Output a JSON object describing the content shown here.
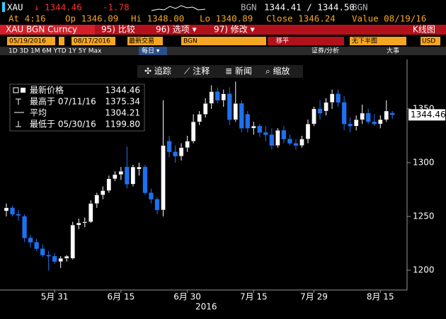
{
  "header": {
    "ticker": "XAU",
    "last": "↓ 1344.46",
    "change": "-1.78",
    "source1": "BGN",
    "bid_ask": "1344.41 / 1344.50",
    "source2": "BGN",
    "time": "At 4:16",
    "open": "Op 1346.09",
    "high": "Hi 1348.00",
    "low": "Lo 1340.89",
    "close": "Close 1346.24",
    "value_date": "Value 08/19/16",
    "security": "XAU BGN Curncy",
    "menu_compare": "95) 比较",
    "menu_options": "96) 选项 ▾",
    "menu_edit": "97) 修改 ▾",
    "view": "K线图",
    "start_date": "05/19/2016",
    "end_date": "08/17/2016",
    "field": "最新交易",
    "field_source": "BGN",
    "shift": "移平",
    "lower_pane": "无下半图",
    "currency": "USD",
    "periods": "1D  3D  1M  6M  YTD  1Y  5Y  Max",
    "frequency": "每日 ▾",
    "analysis": "证券/分析",
    "events": "大事",
    "tool_track": "✣ 追踪",
    "tool_annotate": "⟋ 注释",
    "tool_news": "≣ 新闻",
    "tool_zoom": "⌕ 缩放"
  },
  "chart_data": {
    "type": "candlestick",
    "categories": [
      null,
      null,
      null,
      null,
      null,
      null,
      null,
      null,
      "5月 31",
      null,
      null,
      null,
      null,
      null,
      null,
      null,
      null,
      null,
      null,
      "6月 15",
      null,
      null,
      null,
      null,
      null,
      null,
      null,
      null,
      null,
      null,
      "6月 30",
      null,
      null,
      null,
      null,
      null,
      null,
      null,
      null,
      null,
      null,
      "7月 15",
      null,
      null,
      null,
      null,
      null,
      null,
      null,
      null,
      null,
      "7月 29",
      null,
      null,
      null,
      null,
      null,
      null,
      null,
      null,
      null,
      null,
      "8月 15",
      null,
      null
    ],
    "x_year": "2016",
    "open": [
      1255,
      1258,
      1252,
      1250,
      1230,
      1226,
      1220,
      1214,
      1213,
      1208,
      1211,
      1211,
      1242,
      1244,
      1245,
      1262,
      1270,
      1274,
      1285,
      1289,
      1296,
      1280,
      1294,
      1296,
      1272,
      1266,
      1256,
      1320,
      1310,
      1306,
      1314,
      1320,
      1338,
      1345,
      1355,
      1366,
      1358,
      1364,
      1340,
      1355,
      1345,
      1332,
      1334,
      1328,
      1326,
      1316,
      1330,
      1322,
      1318,
      1316,
      1322,
      1336,
      1350,
      1348,
      1356,
      1364,
      1356,
      1336,
      1334,
      1340,
      1346,
      1338,
      1336,
      1340,
      1346.09
    ],
    "high": [
      1262,
      1260,
      1256,
      1252,
      1233,
      1229,
      1224,
      1218,
      1216,
      1213,
      1214,
      1245,
      1248,
      1249,
      1265,
      1272,
      1278,
      1288,
      1292,
      1296,
      1315,
      1298,
      1300,
      1298,
      1276,
      1268,
      1358,
      1325,
      1316,
      1318,
      1325,
      1345,
      1348,
      1360,
      1372,
      1370,
      1368,
      1370,
      1375.34,
      1358,
      1348,
      1338,
      1336,
      1334,
      1332,
      1332,
      1334,
      1326,
      1322,
      1325,
      1340,
      1352,
      1358,
      1360,
      1368,
      1368,
      1362,
      1342,
      1344,
      1354,
      1350,
      1345,
      1344,
      1358,
      1348.0
    ],
    "low": [
      1250,
      1250,
      1246,
      1226,
      1221,
      1218,
      1212,
      1199.8,
      1206,
      1202,
      1208,
      1210,
      1238,
      1240,
      1244,
      1258,
      1266,
      1272,
      1283,
      1284,
      1276,
      1278,
      1288,
      1270,
      1262,
      1252,
      1250,
      1305,
      1300,
      1302,
      1310,
      1318,
      1335,
      1342,
      1350,
      1355,
      1352,
      1335,
      1338,
      1328,
      1328,
      1326,
      1324,
      1320,
      1312,
      1314,
      1318,
      1316,
      1312,
      1314,
      1318,
      1334,
      1340,
      1344,
      1350,
      1352,
      1330,
      1328,
      1330,
      1336,
      1336,
      1334,
      1332,
      1338,
      1340.89
    ],
    "close": [
      1258,
      1252,
      1251,
      1230,
      1226,
      1220,
      1214,
      1213,
      1208,
      1211,
      1213,
      1242,
      1244,
      1245,
      1262,
      1270,
      1274,
      1285,
      1289,
      1292,
      1280,
      1296,
      1296,
      1272,
      1266,
      1256,
      1316,
      1310,
      1306,
      1314,
      1320,
      1338,
      1345,
      1355,
      1366,
      1358,
      1364,
      1340,
      1355,
      1332,
      1332,
      1334,
      1328,
      1326,
      1316,
      1330,
      1322,
      1318,
      1316,
      1322,
      1336,
      1350,
      1346,
      1356,
      1364,
      1356,
      1336,
      1334,
      1340,
      1346,
      1338,
      1336,
      1340,
      1348,
      1344.46
    ],
    "up_color": "#ffffff",
    "down_color": "#1f70f0",
    "ylim": [
      1181.6,
      1377.6
    ],
    "yticks": [
      1200,
      1250,
      1300,
      1350
    ],
    "grid": false,
    "legend": [
      {
        "label": "最新价格",
        "value": "1344.46"
      },
      {
        "label": "最高于 07/11/16",
        "value": "1375.34"
      },
      {
        "label": "平均",
        "value": "1304.21"
      },
      {
        "label": "最低于 05/30/16",
        "value": "1199.80"
      }
    ]
  }
}
